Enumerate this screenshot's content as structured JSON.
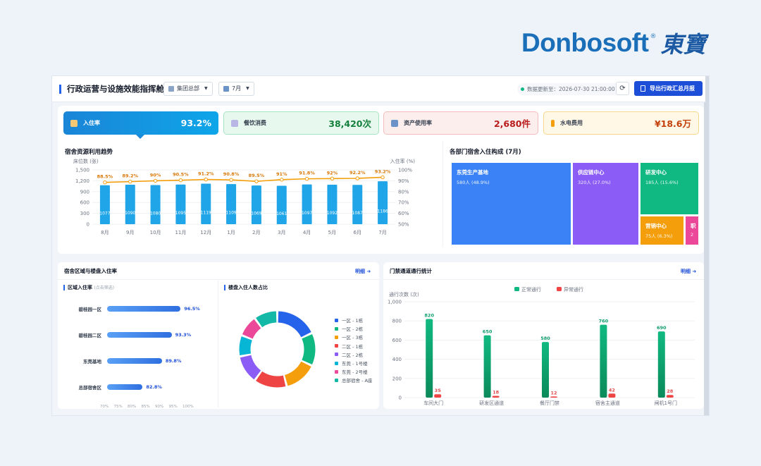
{
  "brand": {
    "name": "Donbosoft",
    "reg": "®",
    "cn": "東寶"
  },
  "header": {
    "title": "行政运营与设施效能指挥舱",
    "org_select": "集团总部",
    "month_select": "7月",
    "update_text": "数据更新至：2026-07-30 21:00:00",
    "export_label": "导出行政汇总月报"
  },
  "kpis": [
    {
      "label": "入住率",
      "value": "93.2%"
    },
    {
      "label": "餐饮消费",
      "value": "38,420次"
    },
    {
      "label": "资产使用率",
      "value": "2,680件"
    },
    {
      "label": "水电费用",
      "value": "¥18.6万"
    }
  ],
  "trend": {
    "title": "宿舍资源利用趋势",
    "left_axis_label": "床位数 (张)",
    "right_axis_label": "入住率 (%)"
  },
  "treemap": {
    "title": "各部门宿舍入住构成 (7月)",
    "items": [
      {
        "name": "东莞生产基地",
        "value": "580人 (48.9%)",
        "color": "#3b82f6"
      },
      {
        "name": "供应链中心",
        "value": "320人 (27.0%)",
        "color": "#8b5cf6"
      },
      {
        "name": "研发中心",
        "value": "185人 (15.6%)",
        "color": "#10b981"
      },
      {
        "name": "营销中心",
        "value": "75人 (6.3%)",
        "color": "#f59e0b"
      },
      {
        "name": "职",
        "value": "2",
        "color": "#ec4899"
      }
    ]
  },
  "dorm": {
    "title": "宿舍区域与楼盘入住率",
    "link": "明细 ➜",
    "area_title": "区域入住率",
    "area_hint": "(点击筛选)",
    "areas": [
      {
        "name": "碧桂园一区",
        "value": 96.5,
        "label": "96.5%"
      },
      {
        "name": "碧桂园二区",
        "value": 93.3,
        "label": "93.3%"
      },
      {
        "name": "东莞基地",
        "value": 89.8,
        "label": "89.8%"
      },
      {
        "name": "总部宿舍区",
        "value": 82.8,
        "label": "82.8%"
      }
    ],
    "area_axis": [
      "70%",
      "75%",
      "80%",
      "85%",
      "90%",
      "95%",
      "100%"
    ],
    "building_title": "楼盘入住人数占比",
    "buildings": [
      {
        "name": "一区 - 1栋",
        "value": 18,
        "color": "#2563eb"
      },
      {
        "name": "一区 - 2栋",
        "value": 14,
        "color": "#10b981"
      },
      {
        "name": "一区 - 3栋",
        "value": 14,
        "color": "#f59e0b"
      },
      {
        "name": "二区 - 1栋",
        "value": 14,
        "color": "#ef4444"
      },
      {
        "name": "二区 - 2栋",
        "value": 12,
        "color": "#8b5cf6"
      },
      {
        "name": "东莞 - 1号楼",
        "value": 9,
        "color": "#06b6d4"
      },
      {
        "name": "东莞 - 2号楼",
        "value": 9,
        "color": "#ec4899"
      },
      {
        "name": "总部宿舍 - A座",
        "value": 10,
        "color": "#14b8a6"
      }
    ]
  },
  "access": {
    "title": "门禁通道通行统计",
    "link": "明细 ➜",
    "y_label": "通行次数 (次)",
    "legend": [
      "正常通行",
      "异常通行"
    ]
  },
  "chart_data": [
    {
      "type": "bar",
      "title": "宿舍资源利用趋势",
      "categories": [
        "8月",
        "9月",
        "10月",
        "11月",
        "12月",
        "1月",
        "2月",
        "3月",
        "4月",
        "5月",
        "6月",
        "7月"
      ],
      "series": [
        {
          "name": "床位数",
          "type": "bar",
          "values": [
            1077,
            1090,
            1080,
            1095,
            1119,
            1109,
            1069,
            1061,
            1097,
            1092,
            1087,
            1186
          ]
        },
        {
          "name": "入住率",
          "type": "line",
          "values": [
            88.5,
            89.2,
            90,
            90.5,
            91.2,
            90.8,
            89.5,
            91,
            91.8,
            92,
            92.2,
            93.2
          ]
        }
      ],
      "ylabel": "床位数 (张)",
      "ylim": [
        0,
        1500
      ],
      "yticks": [
        "0",
        "300",
        "600",
        "900",
        "1,200",
        "1,500"
      ],
      "y2label": "入住率 (%)",
      "y2lim": [
        50,
        100
      ],
      "y2ticks": [
        "50%",
        "60%",
        "70%",
        "80%",
        "90%",
        "100%"
      ],
      "line_labels": [
        "88.5%",
        "89.2%",
        "90%",
        "90.5%",
        "91.2%",
        "90.8%",
        "89.5%",
        "91%",
        "91.8%",
        "92%",
        "92.2%",
        "93.2%"
      ]
    },
    {
      "type": "bar",
      "title": "门禁通道通行统计",
      "categories": [
        "车间大门",
        "研发区通道",
        "餐厅门禁",
        "宿舍主通道",
        "闸机1号门"
      ],
      "series": [
        {
          "name": "正常通行",
          "values": [
            820,
            650,
            580,
            760,
            690
          ],
          "color": "#10b981"
        },
        {
          "name": "异常通行",
          "values": [
            35,
            18,
            12,
            42,
            28
          ],
          "color": "#ef4444"
        }
      ],
      "ylabel": "通行次数 (次)",
      "ylim": [
        0,
        1000
      ],
      "yticks": [
        "0",
        "200",
        "400",
        "600",
        "800",
        "1,000"
      ]
    }
  ]
}
